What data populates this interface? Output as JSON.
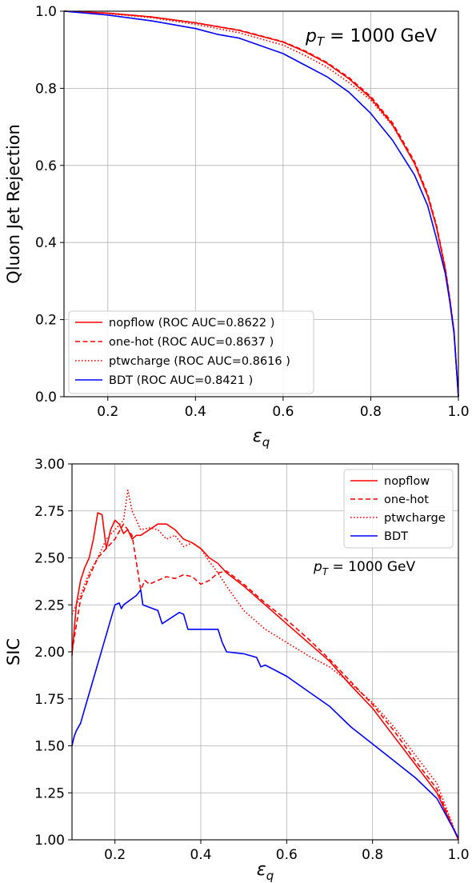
{
  "chart_data": [
    {
      "type": "line",
      "title": "",
      "annotation": {
        "main": "p",
        "sub": "T",
        "rest": " = 1000 GeV"
      },
      "xlabel": {
        "main": "ε",
        "sub": "q"
      },
      "ylabel": "Qluon Jet Rejection",
      "xlim": [
        0.1,
        1.0
      ],
      "ylim": [
        0.0,
        1.0
      ],
      "xticks": [
        "0.2",
        "0.4",
        "0.6",
        "0.8",
        "1.0"
      ],
      "yticks": [
        "0.0",
        "0.2",
        "0.4",
        "0.6",
        "0.8",
        "1.0"
      ],
      "xtick_values": [
        0.2,
        0.4,
        0.6,
        0.8,
        1.0
      ],
      "ytick_values": [
        0.0,
        0.2,
        0.4,
        0.6,
        0.8,
        1.0
      ],
      "grid": true,
      "legend_position": "lower-left",
      "series": [
        {
          "name": "nopflow (ROC AUC=0.8622 )",
          "color": "#ff0000",
          "style": "solid",
          "x": [
            0.1,
            0.2,
            0.3,
            0.4,
            0.5,
            0.6,
            0.65,
            0.7,
            0.75,
            0.8,
            0.85,
            0.9,
            0.93,
            0.95,
            0.97,
            0.98,
            0.99,
            1.0
          ],
          "y": [
            1.0,
            0.995,
            0.985,
            0.97,
            0.95,
            0.92,
            0.895,
            0.865,
            0.825,
            0.775,
            0.705,
            0.605,
            0.52,
            0.44,
            0.33,
            0.255,
            0.17,
            0.0
          ]
        },
        {
          "name": "one-hot (ROC AUC=0.8637 )",
          "color": "#ff0000",
          "style": "dashed",
          "x": [
            0.1,
            0.2,
            0.3,
            0.4,
            0.5,
            0.6,
            0.65,
            0.7,
            0.75,
            0.8,
            0.85,
            0.9,
            0.93,
            0.95,
            0.97,
            0.98,
            0.99,
            1.0
          ],
          "y": [
            1.0,
            0.995,
            0.985,
            0.97,
            0.951,
            0.921,
            0.897,
            0.867,
            0.828,
            0.779,
            0.71,
            0.61,
            0.525,
            0.445,
            0.335,
            0.26,
            0.172,
            0.0
          ]
        },
        {
          "name": "ptwcharge (ROC AUC=0.8616 )",
          "color": "#ff0000",
          "style": "dotted",
          "x": [
            0.1,
            0.2,
            0.3,
            0.4,
            0.5,
            0.6,
            0.65,
            0.7,
            0.75,
            0.8,
            0.85,
            0.9,
            0.93,
            0.95,
            0.97,
            0.98,
            0.99,
            1.0
          ],
          "y": [
            1.0,
            0.994,
            0.983,
            0.966,
            0.944,
            0.912,
            0.885,
            0.855,
            0.815,
            0.77,
            0.703,
            0.605,
            0.52,
            0.44,
            0.33,
            0.255,
            0.17,
            0.0
          ]
        },
        {
          "name": "BDT (ROC AUC=0.8421 )",
          "color": "#0000ff",
          "style": "solid",
          "x": [
            0.1,
            0.2,
            0.3,
            0.4,
            0.45,
            0.5,
            0.55,
            0.6,
            0.65,
            0.7,
            0.75,
            0.8,
            0.85,
            0.9,
            0.93,
            0.95,
            0.97,
            0.98,
            0.99,
            1.0
          ],
          "y": [
            1.0,
            0.99,
            0.975,
            0.955,
            0.94,
            0.93,
            0.91,
            0.89,
            0.86,
            0.83,
            0.79,
            0.735,
            0.665,
            0.575,
            0.495,
            0.41,
            0.32,
            0.25,
            0.165,
            0.0
          ]
        }
      ]
    },
    {
      "type": "line",
      "title": "",
      "annotation": {
        "main": "p",
        "sub": "T",
        "rest": " = 1000 GeV"
      },
      "xlabel": {
        "main": "ε",
        "sub": "q"
      },
      "ylabel": "SIC",
      "xlim": [
        0.1,
        1.0
      ],
      "ylim": [
        1.0,
        3.0
      ],
      "xticks": [
        "0.2",
        "0.4",
        "0.6",
        "0.8",
        "1.0"
      ],
      "yticks": [
        "1.00",
        "1.25",
        "1.50",
        "1.75",
        "2.00",
        "2.25",
        "2.50",
        "2.75",
        "3.00"
      ],
      "xtick_values": [
        0.2,
        0.4,
        0.6,
        0.8,
        1.0
      ],
      "ytick_values": [
        1.0,
        1.25,
        1.5,
        1.75,
        2.0,
        2.25,
        2.5,
        2.75,
        3.0
      ],
      "grid": true,
      "legend_position": "top-right",
      "series": [
        {
          "name": "nopflow",
          "color": "#ff0000",
          "style": "solid",
          "x": [
            0.1,
            0.11,
            0.12,
            0.13,
            0.14,
            0.15,
            0.16,
            0.17,
            0.18,
            0.19,
            0.2,
            0.21,
            0.22,
            0.23,
            0.24,
            0.25,
            0.26,
            0.28,
            0.3,
            0.32,
            0.34,
            0.36,
            0.38,
            0.4,
            0.42,
            0.44,
            0.46,
            0.5,
            0.55,
            0.6,
            0.65,
            0.7,
            0.75,
            0.8,
            0.85,
            0.9,
            0.95,
            1.0
          ],
          "y": [
            1.98,
            2.25,
            2.38,
            2.45,
            2.5,
            2.6,
            2.74,
            2.73,
            2.55,
            2.65,
            2.7,
            2.68,
            2.63,
            2.65,
            2.6,
            2.62,
            2.62,
            2.65,
            2.68,
            2.68,
            2.65,
            2.6,
            2.58,
            2.55,
            2.5,
            2.47,
            2.42,
            2.35,
            2.25,
            2.15,
            2.05,
            1.95,
            1.82,
            1.7,
            1.55,
            1.4,
            1.25,
            1.0
          ]
        },
        {
          "name": "one-hot",
          "color": "#ff0000",
          "style": "dashed",
          "x": [
            0.1,
            0.12,
            0.14,
            0.16,
            0.18,
            0.2,
            0.22,
            0.24,
            0.26,
            0.27,
            0.28,
            0.3,
            0.32,
            0.34,
            0.36,
            0.38,
            0.4,
            0.42,
            0.44,
            0.46,
            0.5,
            0.55,
            0.6,
            0.65,
            0.7,
            0.75,
            0.8,
            0.85,
            0.9,
            0.95,
            1.0
          ],
          "y": [
            2.0,
            2.28,
            2.4,
            2.5,
            2.55,
            2.6,
            2.68,
            2.62,
            2.33,
            2.38,
            2.36,
            2.38,
            2.4,
            2.39,
            2.41,
            2.4,
            2.36,
            2.38,
            2.42,
            2.43,
            2.36,
            2.26,
            2.17,
            2.07,
            1.96,
            1.84,
            1.72,
            1.58,
            1.42,
            1.27,
            1.0
          ]
        },
        {
          "name": "ptwcharge",
          "color": "#ff0000",
          "style": "dotted",
          "x": [
            0.1,
            0.12,
            0.14,
            0.16,
            0.18,
            0.2,
            0.22,
            0.23,
            0.24,
            0.26,
            0.28,
            0.3,
            0.32,
            0.34,
            0.36,
            0.38,
            0.4,
            0.42,
            0.44,
            0.46,
            0.5,
            0.55,
            0.6,
            0.65,
            0.7,
            0.75,
            0.8,
            0.85,
            0.9,
            0.95,
            1.0
          ],
          "y": [
            2.2,
            2.3,
            2.42,
            2.5,
            2.6,
            2.65,
            2.7,
            2.86,
            2.75,
            2.65,
            2.66,
            2.65,
            2.6,
            2.62,
            2.56,
            2.58,
            2.55,
            2.48,
            2.42,
            2.35,
            2.22,
            2.12,
            2.05,
            1.98,
            1.92,
            1.83,
            1.73,
            1.6,
            1.45,
            1.3,
            1.0
          ]
        },
        {
          "name": "BDT",
          "color": "#0000ff",
          "style": "solid",
          "x": [
            0.1,
            0.105,
            0.11,
            0.12,
            0.13,
            0.2,
            0.21,
            0.215,
            0.22,
            0.25,
            0.26,
            0.265,
            0.3,
            0.31,
            0.35,
            0.36,
            0.37,
            0.4,
            0.44,
            0.45,
            0.46,
            0.5,
            0.53,
            0.54,
            0.55,
            0.6,
            0.65,
            0.7,
            0.75,
            0.8,
            0.85,
            0.9,
            0.95,
            1.0
          ],
          "y": [
            1.5,
            1.55,
            1.58,
            1.62,
            1.7,
            2.25,
            2.26,
            2.23,
            2.25,
            2.3,
            2.33,
            2.25,
            2.22,
            2.15,
            2.21,
            2.2,
            2.12,
            2.12,
            2.12,
            2.05,
            2.0,
            1.99,
            1.97,
            1.92,
            1.93,
            1.87,
            1.79,
            1.71,
            1.6,
            1.51,
            1.42,
            1.33,
            1.22,
            1.01
          ]
        }
      ]
    }
  ]
}
